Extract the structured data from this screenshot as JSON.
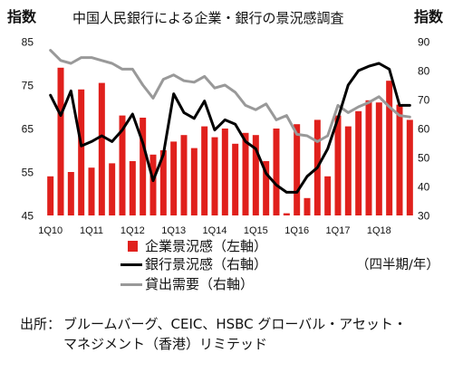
{
  "chart_data": {
    "type": "bar",
    "title": "中国人民銀行による企業・銀行の景況感調査",
    "x_tick_labels": [
      "1Q10",
      "1Q11",
      "1Q12",
      "1Q13",
      "1Q14",
      "1Q15",
      "1Q16",
      "1Q17",
      "1Q18"
    ],
    "x_note": "（四半期/年）",
    "y_left": {
      "label": "指数",
      "range": [
        45,
        85
      ],
      "ticks": [
        45,
        55,
        65,
        75,
        85
      ]
    },
    "y_right": {
      "label": "指数",
      "range": [
        30,
        90
      ],
      "ticks": [
        30,
        40,
        50,
        60,
        70,
        80,
        90
      ]
    },
    "grid": false,
    "legend": "bottom",
    "series": [
      {
        "name": "企業景況感（左軸）",
        "type": "bar",
        "axis": "left",
        "color": "#e0201c",
        "values": [
          54,
          79,
          55,
          74,
          56,
          75.5,
          57,
          68,
          57.5,
          67.5,
          59,
          60,
          62,
          63.5,
          60.5,
          65.5,
          63,
          65,
          61.5,
          64,
          63.5,
          57.5,
          65,
          45.5,
          66,
          49,
          67,
          54,
          68,
          65.5,
          69,
          71.5,
          71,
          76,
          70.5,
          67
        ]
      },
      {
        "name": "銀行景況感（右軸）",
        "type": "line",
        "axis": "right",
        "color": "#000000",
        "values": [
          71.5,
          64.5,
          73,
          54,
          55.5,
          57.5,
          55.5,
          59.5,
          65,
          55,
          42,
          51,
          72,
          65.5,
          63.5,
          69.5,
          59.5,
          63,
          61.5,
          55.5,
          53,
          44.5,
          40.5,
          38,
          38,
          43.5,
          46.5,
          53,
          63.5,
          75,
          80,
          81.5,
          82.5,
          80.5,
          68,
          68
        ]
      },
      {
        "name": "貸出需要（右軸）",
        "type": "line",
        "axis": "right",
        "color": "#999999",
        "values": [
          87,
          83.5,
          82.5,
          84.5,
          84.5,
          83.5,
          82.5,
          80.5,
          80.5,
          75,
          70.5,
          77,
          78.5,
          76.5,
          76,
          78,
          74,
          75,
          72.5,
          68,
          66.5,
          68.5,
          63,
          64.5,
          58,
          57.5,
          55.5,
          57.5,
          68,
          65.5,
          67.5,
          69,
          71,
          67.5,
          64.5,
          64
        ]
      }
    ]
  },
  "source": {
    "label": "出所：",
    "lines": [
      "ブルームバーグ、CEIC、HSBC グローバル・アセット・",
      "マネジメント（香港）リミテッド"
    ]
  }
}
